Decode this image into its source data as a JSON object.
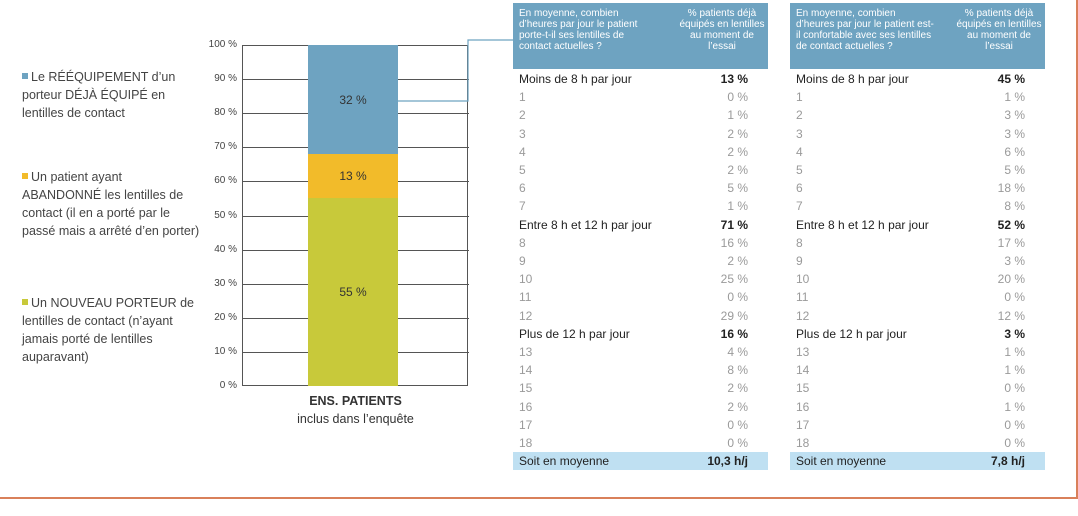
{
  "legend": [
    {
      "color": "#6ea3c1",
      "text": "Le RÉÉQUIPEMENT d’un porteur DÉJÀ ÉQUIPÉ en lentilles de contact"
    },
    {
      "color": "#f2bb2a",
      "text": "Un patient ayant ABANDONNÉ les lentilles de contact (il en a porté par le passé mais a arrêté d’en porter)"
    },
    {
      "color": "#c8c93a",
      "text": "Un NOUVEAU PORTEUR de lentilles de contact (n’ayant jamais porté de lentilles auparavant)"
    }
  ],
  "chart_data": {
    "type": "bar",
    "stacked": true,
    "categories": [
      "ENS. PATIENTS"
    ],
    "xlabel_line1": "ENS. PATIENTS",
    "xlabel_line2": "inclus dans l’enquête",
    "ylim": [
      0,
      100
    ],
    "yticks": [
      "0 %",
      "10 %",
      "20 %",
      "30 %",
      "40 %",
      "50 %",
      "60 %",
      "70 %",
      "80 %",
      "90 %",
      "100 %"
    ],
    "series": [
      {
        "name": "Un NOUVEAU PORTEUR de lentilles de contact",
        "values": [
          55
        ],
        "label": "55 %",
        "color": "#c8c93a"
      },
      {
        "name": "Un patient ayant ABANDONNÉ les lentilles de contact",
        "values": [
          13
        ],
        "label": "13 %",
        "color": "#f2bb2a"
      },
      {
        "name": "Le RÉÉQUIPEMENT d’un porteur DÉJÀ ÉQUIPÉ",
        "values": [
          32
        ],
        "label": "32 %",
        "color": "#6ea3c1"
      }
    ]
  },
  "tables": [
    {
      "header_q": "En moyenne, combien d’heures par jour le patient porte-t-il ses lentilles de contact actuelles ?",
      "header_pct": "% patients déjà équipés en lentilles au moment de l’essai",
      "rows": [
        {
          "k": "sum",
          "label": "Moins de 8 h par jour",
          "value": "13 %"
        },
        {
          "k": "sub",
          "label": "1",
          "value": "0 %"
        },
        {
          "k": "sub",
          "label": "2",
          "value": "1 %"
        },
        {
          "k": "sub",
          "label": "3",
          "value": "2 %"
        },
        {
          "k": "sub",
          "label": "4",
          "value": "2 %"
        },
        {
          "k": "sub",
          "label": "5",
          "value": "2 %"
        },
        {
          "k": "sub",
          "label": "6",
          "value": "5 %"
        },
        {
          "k": "sub",
          "label": "7",
          "value": "1 %"
        },
        {
          "k": "sum",
          "label": "Entre 8 h et 12 h par jour",
          "value": "71 %"
        },
        {
          "k": "sub",
          "label": "8",
          "value": "16 %"
        },
        {
          "k": "sub",
          "label": "9",
          "value": "2 %"
        },
        {
          "k": "sub",
          "label": "10",
          "value": "25 %"
        },
        {
          "k": "sub",
          "label": "11",
          "value": "0 %"
        },
        {
          "k": "sub",
          "label": "12",
          "value": "29 %"
        },
        {
          "k": "sum",
          "label": "Plus de 12 h par jour",
          "value": "16 %"
        },
        {
          "k": "sub",
          "label": "13",
          "value": "4 %"
        },
        {
          "k": "sub",
          "label": "14",
          "value": "8 %"
        },
        {
          "k": "sub",
          "label": "15",
          "value": "2 %"
        },
        {
          "k": "sub",
          "label": "16",
          "value": "2 %"
        },
        {
          "k": "sub",
          "label": "17",
          "value": "0 %"
        },
        {
          "k": "sub",
          "label": "18",
          "value": "0 %"
        },
        {
          "k": "avg",
          "label": "Soit en moyenne",
          "value": "10,3 h/j"
        }
      ]
    },
    {
      "header_q": "En moyenne, combien d’heures par jour le patient est-il confortable avec ses lentilles de contact actuelles ?",
      "header_pct": "% patients déjà équipés en lentilles au moment de l’essai",
      "rows": [
        {
          "k": "sum",
          "label": "Moins de 8 h par jour",
          "value": "45 %"
        },
        {
          "k": "sub",
          "label": "1",
          "value": "1 %"
        },
        {
          "k": "sub",
          "label": "2",
          "value": "3 %"
        },
        {
          "k": "sub",
          "label": "3",
          "value": "3 %"
        },
        {
          "k": "sub",
          "label": "4",
          "value": "6 %"
        },
        {
          "k": "sub",
          "label": "5",
          "value": "5 %"
        },
        {
          "k": "sub",
          "label": "6",
          "value": "18 %"
        },
        {
          "k": "sub",
          "label": "7",
          "value": "8 %"
        },
        {
          "k": "sum",
          "label": "Entre 8 h et 12 h par jour",
          "value": "52 %"
        },
        {
          "k": "sub",
          "label": "8",
          "value": "17 %"
        },
        {
          "k": "sub",
          "label": "9",
          "value": "3 %"
        },
        {
          "k": "sub",
          "label": "10",
          "value": "20 %"
        },
        {
          "k": "sub",
          "label": "11",
          "value": "0 %"
        },
        {
          "k": "sub",
          "label": "12",
          "value": "12 %"
        },
        {
          "k": "sum",
          "label": "Plus de 12 h par jour",
          "value": "3 %"
        },
        {
          "k": "sub",
          "label": "13",
          "value": "1 %"
        },
        {
          "k": "sub",
          "label": "14",
          "value": "1 %"
        },
        {
          "k": "sub",
          "label": "15",
          "value": "0 %"
        },
        {
          "k": "sub",
          "label": "16",
          "value": "1 %"
        },
        {
          "k": "sub",
          "label": "17",
          "value": "0 %"
        },
        {
          "k": "sub",
          "label": "18",
          "value": "0 %"
        },
        {
          "k": "avg",
          "label": "Soit en moyenne",
          "value": "7,8 h/j"
        }
      ]
    }
  ]
}
